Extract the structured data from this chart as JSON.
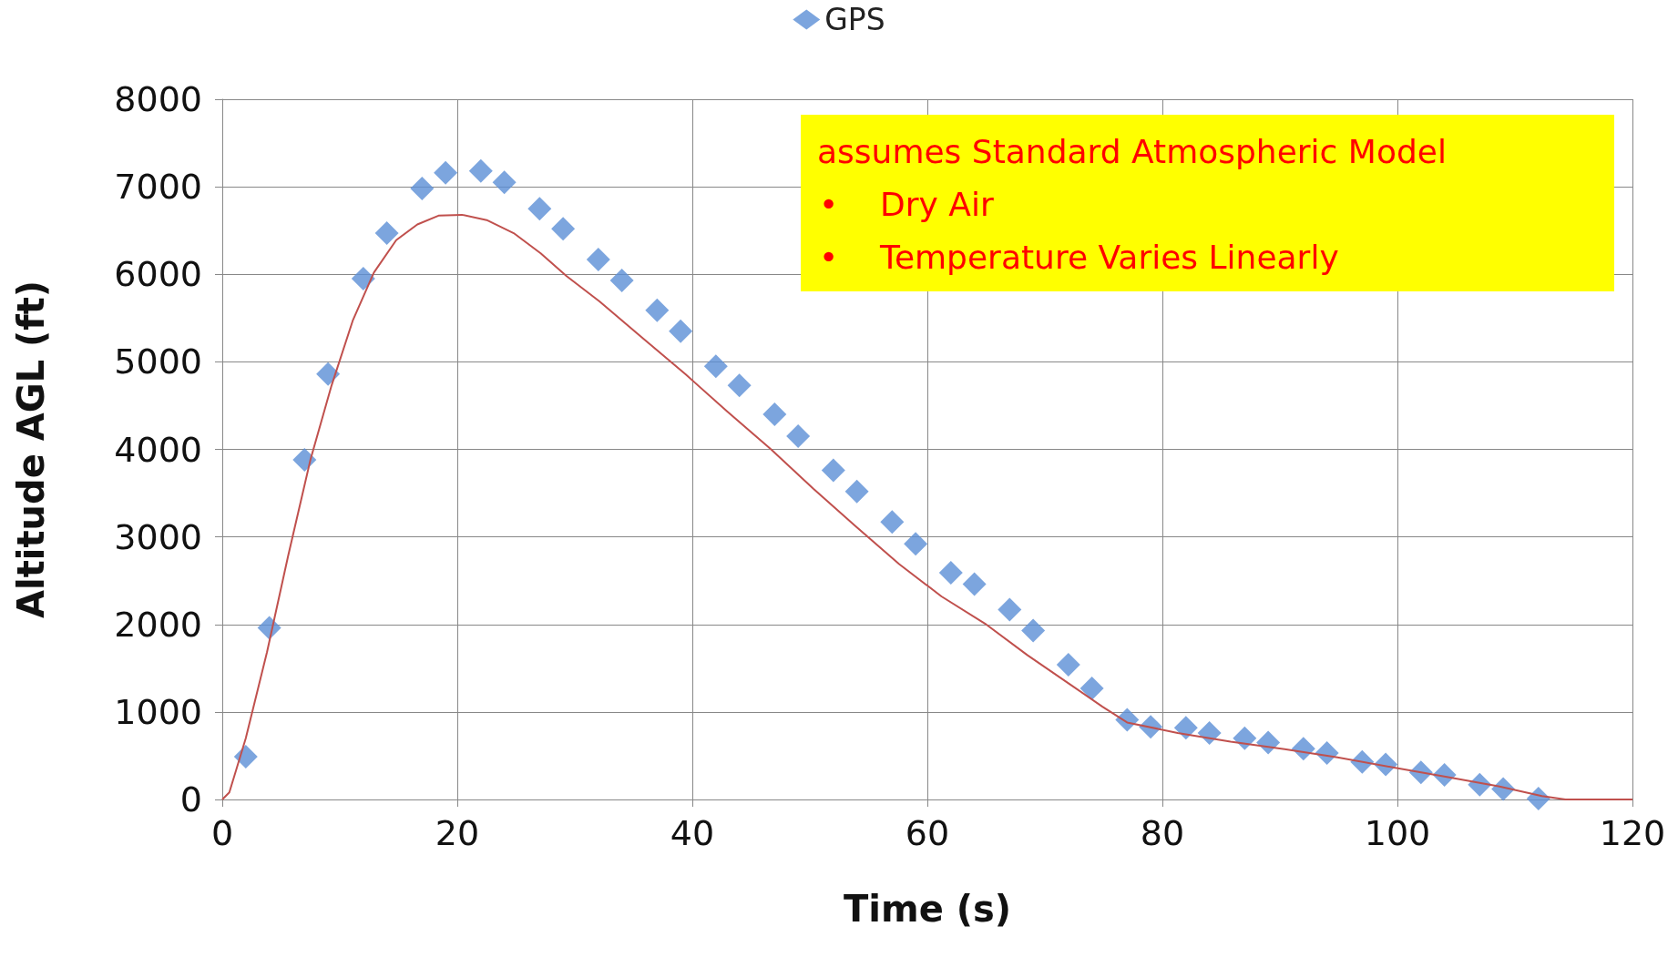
{
  "chart_data": {
    "type": "line",
    "xlabel": "Time (s)",
    "ylabel": "Altitude AGL (ft)",
    "xlim": [
      0,
      120
    ],
    "xticks": [
      0,
      20,
      40,
      60,
      80,
      100,
      120
    ],
    "ylim": [
      0,
      8000
    ],
    "yticks": [
      0,
      1000,
      2000,
      3000,
      4000,
      5000,
      6000,
      7000,
      8000
    ],
    "grid": true,
    "legend": "top",
    "annotations": [
      "assumes Standard Atmospheric Model",
      "•    Dry Air",
      "•    Temperature Varies Linearly"
    ],
    "series": [
      {
        "name": "GPS",
        "type": "scatter",
        "marker": "diamond",
        "color": "#5b8fd6",
        "x": [
          2,
          4,
          7,
          9,
          12,
          14,
          17,
          19,
          22,
          24,
          27,
          29,
          32,
          34,
          37,
          39,
          42,
          44,
          47,
          49,
          52,
          54,
          57,
          59,
          62,
          64,
          67,
          69,
          72,
          74,
          77,
          79,
          82,
          84,
          87,
          89,
          92,
          94,
          97,
          99,
          102,
          104,
          107,
          109,
          112
        ],
        "values": [
          490,
          1960,
          3880,
          4860,
          5950,
          6470,
          6980,
          7160,
          7180,
          7050,
          6750,
          6520,
          6170,
          5930,
          5590,
          5350,
          4950,
          4730,
          4400,
          4150,
          3760,
          3520,
          3170,
          2920,
          2590,
          2460,
          2170,
          1930,
          1540,
          1270,
          910,
          830,
          820,
          760,
          700,
          650,
          580,
          530,
          430,
          400,
          310,
          280,
          170,
          120,
          10
        ]
      },
      {
        "marker": "none",
        "line_style": "solid",
        "color": "#c0504d",
        "x": [
          0,
          0.6,
          2,
          3.8,
          5.6,
          7.5,
          9.3,
          11.1,
          12.9,
          14.8,
          16.6,
          18.4,
          20.4,
          22.5,
          24.8,
          27.1,
          29.3,
          32.1,
          35.7,
          39.4,
          43,
          46.7,
          50.3,
          53.9,
          57.6,
          61.2,
          64.9,
          68.5,
          72.2,
          74.9,
          77,
          81.3,
          85.8,
          90.4,
          94.9,
          99.5,
          104.1,
          108.6,
          112.3,
          114.3,
          120
        ],
        "values": [
          0,
          80,
          700,
          1680,
          2780,
          3880,
          4730,
          5470,
          6020,
          6390,
          6570,
          6670,
          6680,
          6620,
          6470,
          6240,
          5980,
          5690,
          5280,
          4860,
          4430,
          4000,
          3550,
          3120,
          2690,
          2320,
          2010,
          1650,
          1310,
          1060,
          880,
          760,
          660,
          575,
          480,
          370,
          260,
          150,
          40,
          0,
          0
        ]
      }
    ]
  }
}
